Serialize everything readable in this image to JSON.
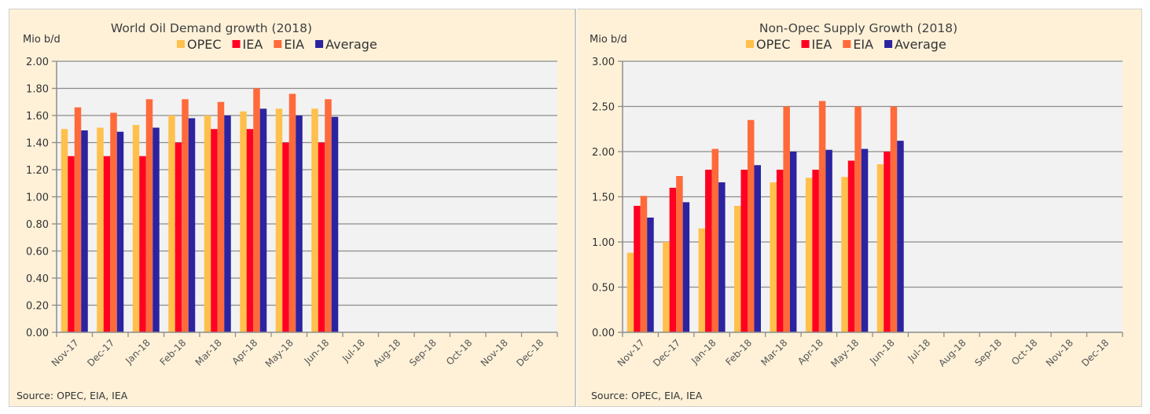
{
  "chart_data": [
    {
      "type": "bar",
      "title": "World Oil Demand growth (2018)",
      "ylabel": "Mio b/d",
      "xlabel": "",
      "ylim": [
        0,
        2.0
      ],
      "yticks": [
        "0.00",
        "0.20",
        "0.40",
        "0.60",
        "0.80",
        "1.00",
        "1.20",
        "1.40",
        "1.60",
        "1.80",
        "2.00"
      ],
      "ytick_values": [
        0,
        0.2,
        0.4,
        0.6,
        0.8,
        1.0,
        1.2,
        1.4,
        1.6,
        1.8,
        2.0
      ],
      "grid": true,
      "legend_position": "top-center",
      "categories": [
        "Nov-17",
        "Dec-17",
        "Jan-18",
        "Feb-18",
        "Mar-18",
        "Apr-18",
        "May-18",
        "Jun-18",
        "Jul-18",
        "Aug-18",
        "Sep-18",
        "Oct-18",
        "Nov-18",
        "Dec-18"
      ],
      "series": [
        {
          "name": "OPEC",
          "color": "#FFC04C",
          "values": [
            1.5,
            1.51,
            1.53,
            1.6,
            1.6,
            1.63,
            1.65,
            1.65,
            null,
            null,
            null,
            null,
            null,
            null
          ]
        },
        {
          "name": "IEA",
          "color": "#FF0022",
          "values": [
            1.3,
            1.3,
            1.3,
            1.4,
            1.5,
            1.5,
            1.4,
            1.4,
            null,
            null,
            null,
            null,
            null,
            null
          ]
        },
        {
          "name": "EIA",
          "color": "#FF6A3A",
          "values": [
            1.66,
            1.62,
            1.72,
            1.72,
            1.7,
            1.8,
            1.76,
            1.72,
            null,
            null,
            null,
            null,
            null,
            null
          ]
        },
        {
          "name": "Average",
          "color": "#2B23A0",
          "values": [
            1.49,
            1.48,
            1.51,
            1.58,
            1.6,
            1.65,
            1.6,
            1.59,
            null,
            null,
            null,
            null,
            null,
            null
          ]
        }
      ],
      "source": "Source: OPEC, EIA, IEA"
    },
    {
      "type": "bar",
      "title": "Non-Opec Supply Growth  (2018)",
      "ylabel": "Mio b/d",
      "xlabel": "",
      "ylim": [
        0,
        3.0
      ],
      "yticks": [
        "0.00",
        "0.50",
        "1.00",
        "1.50",
        "2.00",
        "2.50",
        "3.00"
      ],
      "ytick_values": [
        0,
        0.5,
        1.0,
        1.5,
        2.0,
        2.5,
        3.0
      ],
      "grid": true,
      "legend_position": "top-center",
      "categories": [
        "Nov-17",
        "Dec-17",
        "Jan-18",
        "Feb-18",
        "Mar-18",
        "Apr-18",
        "May-18",
        "Jun-18",
        "Jul-18",
        "Aug-18",
        "Sep-18",
        "Oct-18",
        "Nov-18",
        "Dec-18"
      ],
      "series": [
        {
          "name": "OPEC",
          "color": "#FFC04C",
          "values": [
            0.88,
            1.0,
            1.15,
            1.4,
            1.66,
            1.71,
            1.72,
            1.86,
            null,
            null,
            null,
            null,
            null,
            null
          ]
        },
        {
          "name": "IEA",
          "color": "#FF0022",
          "values": [
            1.4,
            1.6,
            1.8,
            1.8,
            1.8,
            1.8,
            1.9,
            2.0,
            null,
            null,
            null,
            null,
            null,
            null
          ]
        },
        {
          "name": "EIA",
          "color": "#FF6A3A",
          "values": [
            1.51,
            1.73,
            2.03,
            2.35,
            2.5,
            2.56,
            2.5,
            2.5,
            null,
            null,
            null,
            null,
            null,
            null
          ]
        },
        {
          "name": "Average",
          "color": "#2B23A0",
          "values": [
            1.27,
            1.44,
            1.66,
            1.85,
            2.0,
            2.02,
            2.03,
            2.12,
            null,
            null,
            null,
            null,
            null,
            null
          ]
        }
      ],
      "source": "Source: OPEC, EIA, IEA"
    }
  ]
}
